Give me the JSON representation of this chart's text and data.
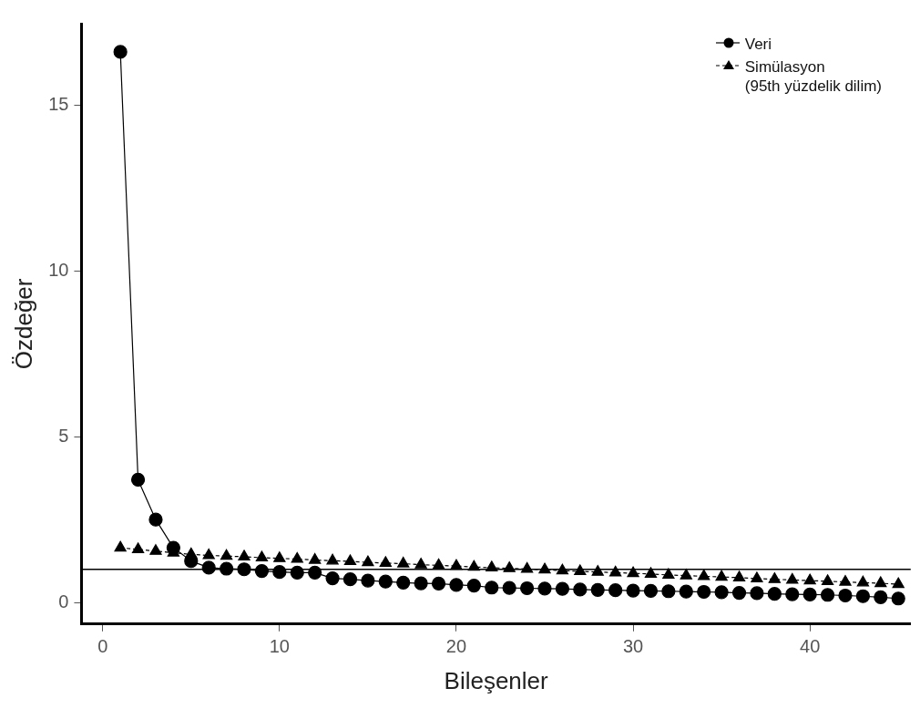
{
  "chart_data": {
    "type": "line",
    "xlabel": "Bileşenler",
    "ylabel": "Özdeğer",
    "x": [
      1,
      2,
      3,
      4,
      5,
      6,
      7,
      8,
      9,
      10,
      11,
      12,
      13,
      14,
      15,
      16,
      17,
      18,
      19,
      20,
      21,
      22,
      23,
      24,
      25,
      26,
      27,
      28,
      29,
      30,
      31,
      32,
      33,
      34,
      35,
      36,
      37,
      38,
      39,
      40,
      41,
      42,
      43,
      44,
      45
    ],
    "series": [
      {
        "name": "Veri",
        "color": "#000000",
        "marker": "circle",
        "line_style": "solid",
        "values": [
          16.6,
          3.7,
          2.5,
          1.65,
          1.25,
          1.05,
          1.02,
          1.0,
          0.95,
          0.92,
          0.9,
          0.9,
          0.73,
          0.7,
          0.66,
          0.63,
          0.6,
          0.58,
          0.57,
          0.53,
          0.51,
          0.45,
          0.44,
          0.43,
          0.42,
          0.41,
          0.39,
          0.38,
          0.37,
          0.36,
          0.35,
          0.34,
          0.33,
          0.32,
          0.31,
          0.29,
          0.28,
          0.26,
          0.25,
          0.24,
          0.23,
          0.21,
          0.19,
          0.16,
          0.12
        ]
      },
      {
        "name": "Simülasyon\n(95th yüzdelik dilim)",
        "color": "#000000",
        "marker": "triangle",
        "line_style": "dashed",
        "values": [
          1.65,
          1.6,
          1.55,
          1.5,
          1.45,
          1.42,
          1.4,
          1.38,
          1.35,
          1.33,
          1.31,
          1.28,
          1.26,
          1.24,
          1.21,
          1.19,
          1.17,
          1.14,
          1.12,
          1.1,
          1.07,
          1.05,
          1.03,
          1.01,
          0.99,
          0.96,
          0.94,
          0.92,
          0.9,
          0.88,
          0.86,
          0.83,
          0.81,
          0.79,
          0.77,
          0.75,
          0.72,
          0.7,
          0.68,
          0.66,
          0.64,
          0.62,
          0.6,
          0.58,
          0.55
        ]
      }
    ],
    "ref_lines": [
      {
        "axis": "y",
        "value": 1,
        "color": "#000000"
      }
    ],
    "xlim": [
      -1.2,
      45.7
    ],
    "xticks": [
      0,
      10,
      20,
      30,
      40
    ],
    "ylim": [
      -0.65,
      17.45
    ],
    "yticks": [
      0,
      5,
      10,
      15
    ],
    "grid": false,
    "legend": "top right"
  }
}
